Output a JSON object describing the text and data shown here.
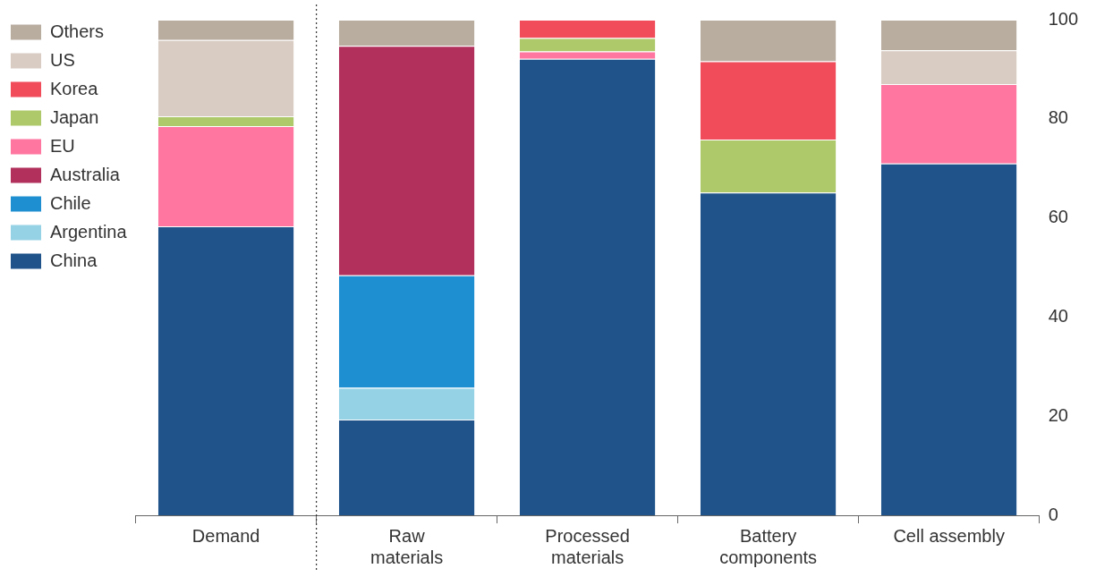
{
  "chart_data": {
    "type": "bar",
    "stacked": true,
    "categories": [
      "Demand",
      "Raw\nmaterials",
      "Processed\nmaterials",
      "Battery\ncomponents",
      "Cell assembly"
    ],
    "series": [
      {
        "name": "China",
        "color": "#1f538a",
        "values": [
          58.3,
          19.3,
          92.1,
          65.1,
          71
        ]
      },
      {
        "name": "Argentina",
        "color": "#96d2e6",
        "values": [
          0,
          6.4,
          0,
          0,
          0
        ]
      },
      {
        "name": "Chile",
        "color": "#1e8fd0",
        "values": [
          0,
          22.7,
          0,
          0,
          0
        ]
      },
      {
        "name": "Australia",
        "color": "#b2305c",
        "values": [
          0,
          46.3,
          0,
          0,
          0
        ]
      },
      {
        "name": "EU",
        "color": "#ff76a0",
        "values": [
          20.2,
          0,
          1.5,
          0,
          16
        ]
      },
      {
        "name": "Japan",
        "color": "#adc96a",
        "values": [
          2,
          0,
          2.7,
          10.7,
          0
        ]
      },
      {
        "name": "Korea",
        "color": "#f04c5a",
        "values": [
          0,
          0,
          3.7,
          15.8,
          0
        ]
      },
      {
        "name": "US",
        "color": "#d9ccc3",
        "values": [
          15.4,
          0,
          0,
          0,
          6.8
        ]
      },
      {
        "name": "Others",
        "color": "#b9ada0",
        "values": [
          4.1,
          5.3,
          0,
          8.4,
          6.2
        ]
      }
    ],
    "ylim": [
      0,
      100
    ],
    "yticks": [
      0,
      20,
      40,
      60,
      80,
      100
    ],
    "legend": "left",
    "grid": false
  }
}
